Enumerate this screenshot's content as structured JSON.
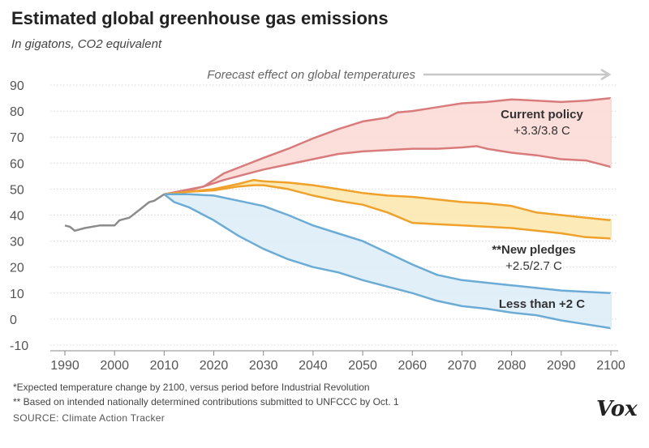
{
  "header": {
    "title": "Estimated global greenhouse gas emissions",
    "subtitle": "In gigatons, CO2 equivalent"
  },
  "footnotes": [
    "*Expected temperature change  by 2100, versus period before Industrial Revolution",
    "** Based on intended nationally determined contributions submitted to UNFCCC by Oct. 1"
  ],
  "source": "SOURCE: Climate Action Tracker",
  "logo": "Vox",
  "colors": {
    "current_line": "#d97b7b",
    "current_fill": "#fbd9d4",
    "pledges_line": "#f0a12a",
    "pledges_fill": "#fbe7ac",
    "below2_line": "#6aacd6",
    "below2_fill": "#dcecf8",
    "historical": "#8c8c8c",
    "grid": "#d8d8d8",
    "arrow": "#c8c8c8"
  },
  "chart_data": {
    "type": "area",
    "title": "Estimated global greenhouse gas emissions",
    "ylabel": "In gigatons, CO2 equivalent",
    "xlim": [
      1990,
      2100
    ],
    "ylim": [
      -10,
      90
    ],
    "xticks": [
      1990,
      2000,
      2010,
      2020,
      2030,
      2040,
      2050,
      2060,
      2070,
      2080,
      2090,
      2100
    ],
    "yticks": [
      -10,
      0,
      10,
      20,
      30,
      40,
      50,
      60,
      70,
      80,
      90
    ],
    "grid": true,
    "forecast_note": "Forecast effect on global temperatures",
    "historical": {
      "x": [
        1990,
        1991,
        1992,
        1994,
        1997,
        2000,
        2001,
        2003,
        2005,
        2007,
        2008,
        2010
      ],
      "y": [
        36,
        35.5,
        34,
        35,
        36,
        36,
        38,
        39,
        42,
        45,
        45.5,
        48
      ]
    },
    "bands": [
      {
        "label": "Current policy\n+3.3/3.8 C",
        "upper": {
          "x": [
            2010,
            2014,
            2018,
            2022,
            2026,
            2030,
            2035,
            2040,
            2045,
            2050,
            2055,
            2057,
            2060,
            2065,
            2070,
            2075,
            2080,
            2085,
            2090,
            2095,
            2100
          ],
          "y": [
            48,
            49.5,
            51,
            56,
            59,
            62,
            65.5,
            69.5,
            73,
            76,
            77.5,
            79.5,
            80,
            81.5,
            83,
            83.5,
            84.5,
            84,
            83.5,
            84,
            85
          ]
        },
        "lower": {
          "x": [
            2010,
            2014,
            2018,
            2022,
            2026,
            2030,
            2035,
            2040,
            2045,
            2050,
            2055,
            2060,
            2065,
            2070,
            2073,
            2075,
            2080,
            2085,
            2090,
            2095,
            2100
          ],
          "y": [
            48,
            49,
            51,
            53.5,
            55.5,
            57.5,
            59.5,
            61.5,
            63.5,
            64.5,
            65,
            65.5,
            65.5,
            66,
            66.5,
            65.5,
            64,
            63,
            61.5,
            61,
            58.5
          ]
        }
      },
      {
        "label": "**New pledges\n+2.5/2.7 C",
        "upper": {
          "x": [
            2010,
            2015,
            2020,
            2025,
            2028,
            2030,
            2035,
            2040,
            2045,
            2050,
            2055,
            2060,
            2065,
            2070,
            2075,
            2080,
            2085,
            2090,
            2095,
            2100
          ],
          "y": [
            48,
            49,
            50,
            52,
            53.5,
            53,
            52.5,
            51.5,
            50,
            48.5,
            47.5,
            47,
            46,
            45,
            44.5,
            43.5,
            41,
            40,
            39,
            38
          ]
        },
        "lower": {
          "x": [
            2010,
            2015,
            2020,
            2025,
            2028,
            2030,
            2035,
            2040,
            2045,
            2050,
            2055,
            2060,
            2065,
            2070,
            2075,
            2080,
            2085,
            2090,
            2095,
            2100
          ],
          "y": [
            48,
            49,
            49.5,
            51,
            51.5,
            51.5,
            50,
            47.5,
            45.5,
            44,
            41,
            37,
            36.5,
            36,
            35.5,
            35,
            34,
            33,
            31.5,
            31
          ]
        }
      },
      {
        "label": "Less than +2 C",
        "upper": {
          "x": [
            2010,
            2015,
            2020,
            2025,
            2030,
            2035,
            2040,
            2045,
            2050,
            2055,
            2060,
            2065,
            2070,
            2075,
            2080,
            2085,
            2090,
            2095,
            2100
          ],
          "y": [
            48,
            48,
            47.5,
            45.5,
            43.5,
            40,
            36,
            33,
            30,
            25.5,
            21,
            17,
            15,
            14,
            13,
            12,
            11,
            10.5,
            10
          ]
        },
        "lower": {
          "x": [
            2010,
            2012,
            2015,
            2020,
            2025,
            2030,
            2035,
            2040,
            2045,
            2050,
            2055,
            2060,
            2065,
            2070,
            2075,
            2080,
            2085,
            2090,
            2095,
            2100
          ],
          "y": [
            48,
            45,
            43,
            38,
            32,
            27,
            23,
            20,
            18,
            15,
            12.5,
            10,
            7,
            5,
            4,
            2.5,
            1.5,
            -0.5,
            -2,
            -3.5
          ]
        }
      }
    ]
  }
}
